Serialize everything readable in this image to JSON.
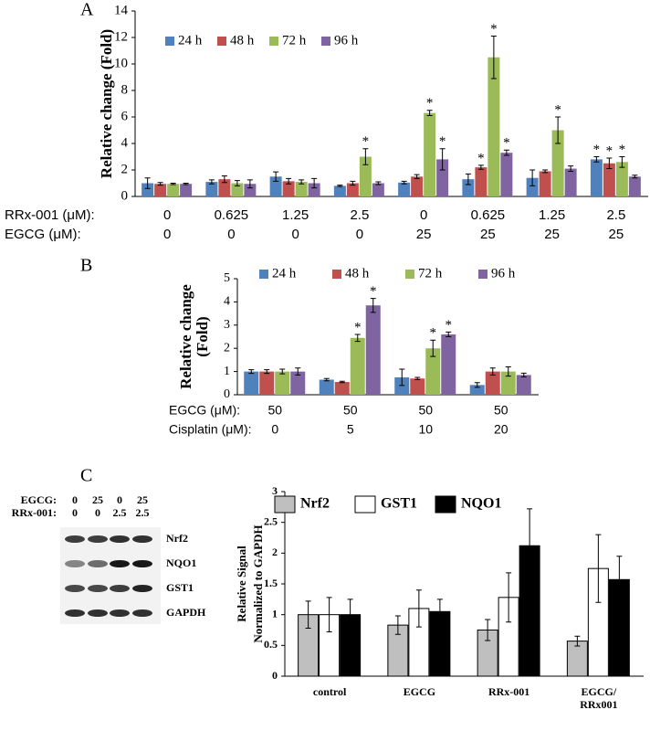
{
  "panel_labels": [
    "A",
    "B",
    "C"
  ],
  "blot": {
    "rows": [
      {
        "label": "EGCG:",
        "values": [
          "0",
          "25",
          "0",
          "25"
        ]
      },
      {
        "label": "RRx-001:",
        "values": [
          "0",
          "0",
          "2.5",
          "2.5"
        ]
      }
    ],
    "bands": [
      "Nrf2",
      "NQO1",
      "GST1",
      "GAPDH"
    ]
  },
  "chart_data": [
    {
      "type": "bar",
      "ylabel": [
        "Relative change (Fold)"
      ],
      "category_labels": [
        "RRx-001 (μM):",
        "EGCG (μM):"
      ],
      "categories": [
        [
          "0",
          "0"
        ],
        [
          "0.625",
          "0"
        ],
        [
          "1.25",
          "0"
        ],
        [
          "2.5",
          "0"
        ],
        [
          "0",
          "25"
        ],
        [
          "0.625",
          "25"
        ],
        [
          "1.25",
          "25"
        ],
        [
          "2.5",
          "25"
        ]
      ],
      "ylim": [
        0,
        14
      ],
      "yticks": [
        0,
        2,
        4,
        6,
        8,
        10,
        12,
        14
      ],
      "legend": "top-left",
      "series": [
        {
          "name": "24 h",
          "color": "#4f81bd",
          "values": [
            1.0,
            1.1,
            1.5,
            0.8,
            1.05,
            1.3,
            1.4,
            2.8
          ],
          "errors": [
            0.4,
            0.15,
            0.35,
            0.05,
            0.1,
            0.4,
            0.6,
            0.2
          ],
          "annotations": [
            null,
            null,
            null,
            null,
            null,
            null,
            null,
            "*"
          ]
        },
        {
          "name": "48 h",
          "color": "#c0504d",
          "values": [
            0.95,
            1.3,
            1.15,
            1.0,
            1.5,
            2.2,
            1.9,
            2.5
          ],
          "errors": [
            0.1,
            0.25,
            0.2,
            0.15,
            0.15,
            0.15,
            0.1,
            0.4
          ],
          "annotations": [
            null,
            null,
            null,
            null,
            null,
            "*",
            null,
            "*"
          ]
        },
        {
          "name": "72 h",
          "color": "#9bbb59",
          "values": [
            0.95,
            1.0,
            1.1,
            3.0,
            6.3,
            10.5,
            5.0,
            2.6
          ],
          "errors": [
            0.05,
            0.2,
            0.15,
            0.6,
            0.2,
            1.6,
            1.0,
            0.4
          ],
          "annotations": [
            null,
            null,
            null,
            "*",
            "*",
            "*",
            "*",
            "*"
          ]
        },
        {
          "name": "96 h",
          "color": "#8064a2",
          "values": [
            0.95,
            0.95,
            1.0,
            1.0,
            2.8,
            3.3,
            2.1,
            1.5
          ],
          "errors": [
            0.05,
            0.3,
            0.35,
            0.1,
            0.8,
            0.2,
            0.2,
            0.1
          ],
          "annotations": [
            null,
            null,
            null,
            null,
            "*",
            "*",
            null,
            null
          ]
        }
      ]
    },
    {
      "type": "bar",
      "ylabel": [
        "Relative change",
        "(Fold)"
      ],
      "category_labels": [
        "EGCG (μM):",
        "Cisplatin (μM):"
      ],
      "categories": [
        [
          "50",
          "0"
        ],
        [
          "50",
          "5"
        ],
        [
          "50",
          "10"
        ],
        [
          "50",
          "20"
        ]
      ],
      "ylim": [
        0,
        5
      ],
      "yticks": [
        0,
        1,
        2,
        3,
        4,
        5
      ],
      "legend": "top",
      "series": [
        {
          "name": "24 h",
          "color": "#4f81bd",
          "values": [
            1.0,
            0.65,
            0.75,
            0.42
          ],
          "errors": [
            0.08,
            0.05,
            0.35,
            0.1
          ],
          "annotations": [
            null,
            null,
            null,
            null
          ]
        },
        {
          "name": "48 h",
          "color": "#c0504d",
          "values": [
            1.0,
            0.55,
            0.7,
            1.0
          ],
          "errors": [
            0.08,
            0.03,
            0.05,
            0.15
          ],
          "annotations": [
            null,
            null,
            null,
            null
          ]
        },
        {
          "name": "72 h",
          "color": "#9bbb59",
          "values": [
            1.0,
            2.45,
            2.0,
            1.0
          ],
          "errors": [
            0.1,
            0.15,
            0.35,
            0.2
          ],
          "annotations": [
            null,
            "*",
            "*",
            null
          ]
        },
        {
          "name": "96 h",
          "color": "#8064a2",
          "values": [
            1.0,
            3.85,
            2.6,
            0.85
          ],
          "errors": [
            0.15,
            0.3,
            0.1,
            0.08
          ],
          "annotations": [
            null,
            "*",
            "*",
            null
          ]
        }
      ]
    },
    {
      "type": "bar",
      "ylabel": [
        "Relative Signal",
        "Normalized to GAPDH"
      ],
      "categories": [
        [
          "control"
        ],
        [
          "EGCG"
        ],
        [
          "RRx-001"
        ],
        [
          "EGCG/",
          "RRx001"
        ]
      ],
      "ylim": [
        0,
        3
      ],
      "yticks": [
        0,
        0.5,
        1,
        1.5,
        2,
        2.5,
        3
      ],
      "legend": "top",
      "edgecolor": "#000000",
      "series": [
        {
          "name": "Nrf2",
          "color": "#bfbfbf",
          "values": [
            1.0,
            0.83,
            0.75,
            0.57
          ],
          "errors": [
            0.22,
            0.15,
            0.17,
            0.08
          ]
        },
        {
          "name": "GST1",
          "color": "#ffffff",
          "values": [
            1.0,
            1.1,
            1.28,
            1.75
          ],
          "errors": [
            0.28,
            0.3,
            0.4,
            0.55
          ]
        },
        {
          "name": "NQO1",
          "color": "#000000",
          "values": [
            1.0,
            1.05,
            2.12,
            1.57
          ],
          "errors": [
            0.25,
            0.2,
            0.6,
            0.38
          ]
        }
      ]
    }
  ]
}
